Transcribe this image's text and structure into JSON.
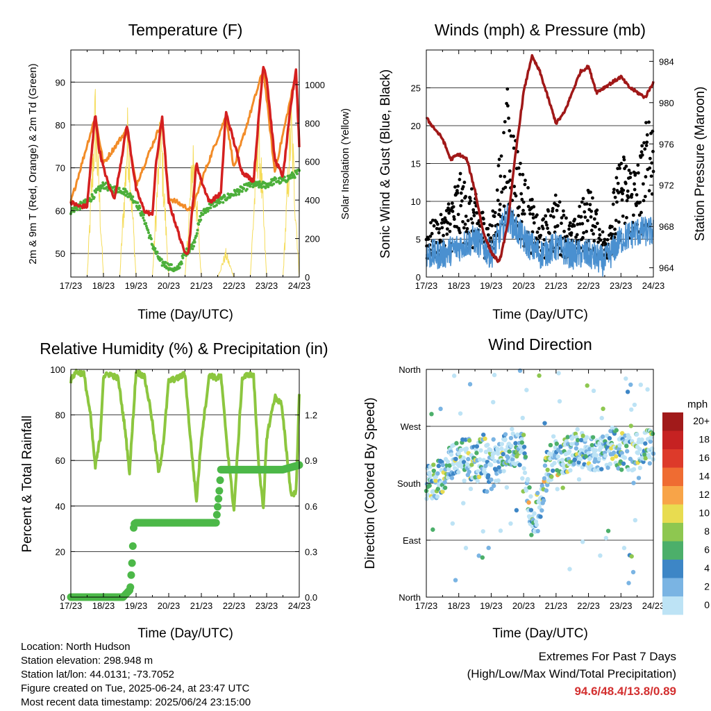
{
  "x_ticks": [
    "17/23",
    "18/23",
    "19/23",
    "20/23",
    "21/23",
    "22/23",
    "23/23",
    "24/23"
  ],
  "time_label": "Time (Day/UTC)",
  "temperature": {
    "title": "Temperature (F)",
    "ylabel_left": "2m & 9m T (Red, Orange) & 2m Td (Green)",
    "ylabel_right": "Solar Insolation (Yellow)",
    "left_ticks": [
      50,
      60,
      70,
      80,
      90
    ],
    "right_ticks": [
      0,
      200,
      400,
      600,
      800,
      1000
    ],
    "ylim_left": [
      44.5,
      97.5
    ],
    "ylim_right": [
      0,
      1180
    ]
  },
  "winds": {
    "title": "Winds (mph) & Pressure (mb)",
    "ylabel_left": "Sonic Wind & Gust (Blue, Black)",
    "ylabel_right": "Station Pressure (Maroon)",
    "left_ticks": [
      0,
      5,
      10,
      15,
      20,
      25
    ],
    "right_ticks": [
      964,
      968,
      972,
      976,
      980,
      984
    ],
    "ylim_left": [
      0,
      30
    ],
    "ylim_right": [
      963.1,
      985.1
    ]
  },
  "humidity": {
    "title": "Relative Humidity (%) & Precipitation (in)",
    "ylabel_left": "Percent & Total Rainfall",
    "left_ticks": [
      0,
      20,
      40,
      60,
      80,
      100
    ],
    "right_ticks": [
      "0.0",
      "0.3",
      "0.6",
      "0.9",
      "1.2"
    ],
    "ylim_left": [
      0,
      100
    ],
    "ylim_right": [
      0,
      1.5
    ]
  },
  "direction": {
    "title": "Wind Direction",
    "ylabel_left": "Direction (Colored By Speed)",
    "left_ticks": [
      "North",
      "East",
      "South",
      "West",
      "North"
    ],
    "legend_title": "mph",
    "legend_labels": [
      "20+",
      "18",
      "16",
      "14",
      "12",
      "10",
      "8",
      "6",
      "4",
      "2",
      "0"
    ],
    "legend_colors": [
      "#a11a1a",
      "#c62222",
      "#dd3a2a",
      "#ef6c32",
      "#f8a448",
      "#e8dc50",
      "#8ec750",
      "#4caf6a",
      "#3d86c6",
      "#7ab4e3",
      "#bde3f5"
    ]
  },
  "info": {
    "location": "Location: North Hudson",
    "elevation": "Station elevation: 298.948 m",
    "latlon": "Station lat/lon: 44.0131; -73.7052",
    "created": "Figure created on Tue, 2025-06-24, at 23:47 UTC",
    "recent": "Most recent data timestamp: 2025/06/24 23:15:00"
  },
  "extremes": {
    "heading": "Extremes For Past 7 Days",
    "subheading": "(High/Low/Max Wind/Total Precipitation)",
    "values": "94.6/48.4/13.8/0.89"
  },
  "colors": {
    "temp_2m": "#d42020",
    "temp_9m": "#f28c28",
    "dewpoint": "#4caf3a",
    "solar": "#f5dc5a",
    "wind": "#4a90d0",
    "gust": "#000000",
    "pressure": "#a01818",
    "rh": "#8cc63f",
    "precip": "#4cb848"
  },
  "chart_data": [
    {
      "type": "line",
      "title": "Temperature (F)",
      "xlabel": "Time (Day/UTC)",
      "ylabel": "2m & 9m T (Red, Orange) & 2m Td (Green)",
      "y2label": "Solar Insolation (Yellow)",
      "x_range_days": [
        0,
        7
      ],
      "ylim": [
        44.5,
        97.5
      ],
      "y2lim": [
        0,
        1180
      ],
      "series": [
        {
          "name": "2m T",
          "x": [
            0,
            0.25,
            0.5,
            0.6,
            0.75,
            0.85,
            1,
            1.2,
            1.35,
            1.55,
            1.72,
            1.85,
            2,
            2.25,
            2.5,
            2.6,
            2.8,
            2.9,
            3,
            3.25,
            3.45,
            3.6,
            3.72,
            3.85,
            4,
            4.25,
            4.6,
            4.75,
            5,
            5.25,
            5.6,
            5.75,
            5.9,
            6,
            6.25,
            6.5,
            6.75,
            6.9,
            7
          ],
          "values": [
            62,
            61,
            61,
            70,
            83,
            75,
            70,
            65,
            63,
            72,
            80,
            73,
            65,
            60,
            59,
            70,
            82,
            72,
            62,
            56,
            51,
            50,
            60,
            71,
            67,
            62,
            64,
            83,
            76,
            69,
            67,
            81,
            94,
            91,
            72,
            68,
            85,
            93,
            75
          ]
        },
        {
          "name": "9m T",
          "x": [
            0,
            0.75,
            1,
            1.72,
            2,
            2.8,
            3,
            3.72,
            4,
            4.75,
            5,
            5.9,
            6.25,
            6.9,
            7
          ],
          "values": [
            62,
            82,
            71,
            79,
            66,
            81,
            63,
            60,
            67,
            82,
            70,
            93,
            69,
            92,
            76
          ]
        },
        {
          "name": "2m Td",
          "x": [
            0,
            0.25,
            0.5,
            0.75,
            1,
            1.25,
            1.5,
            1.75,
            2,
            2.25,
            2.5,
            2.75,
            3,
            3.25,
            3.5,
            3.75,
            4,
            4.25,
            4.5,
            4.75,
            5,
            5.25,
            5.5,
            5.75,
            6,
            6.25,
            6.5,
            6.75,
            7
          ],
          "values": [
            60,
            61,
            62,
            64,
            66,
            65,
            65,
            64,
            62,
            58,
            52,
            48,
            47,
            46,
            50,
            52,
            59,
            61,
            62,
            63,
            64,
            65,
            66,
            66,
            66,
            67,
            67,
            68,
            69
          ]
        },
        {
          "name": "Solar",
          "x": [
            0.5,
            0.75,
            1.0,
            1.5,
            1.75,
            2.0,
            2.5,
            2.75,
            3.0,
            3.5,
            3.75,
            4.0,
            4.5,
            4.75,
            5.0,
            5.5,
            5.75,
            6.0,
            6.5,
            6.75,
            7.0
          ],
          "values": [
            0,
            1050,
            0,
            0,
            950,
            0,
            0,
            950,
            0,
            0,
            800,
            0,
            0,
            150,
            0,
            0,
            1000,
            0,
            0,
            1000,
            0
          ]
        }
      ]
    },
    {
      "type": "scatter",
      "title": "Winds (mph) & Pressure (mb)",
      "xlabel": "Time (Day/UTC)",
      "ylabel": "Sonic Wind & Gust (Blue, Black)",
      "y2label": "Station Pressure (Maroon)",
      "ylim": [
        0,
        30
      ],
      "y2lim": [
        963.1,
        985.1
      ],
      "series": [
        {
          "name": "Sonic Wind",
          "x": [
            0,
            0.5,
            1,
            1.5,
            2,
            2.5,
            3,
            3.5,
            4,
            4.5,
            5,
            5.5,
            6,
            6.5,
            7
          ],
          "values": [
            3,
            3,
            4,
            5,
            3,
            8,
            5,
            3,
            4,
            3,
            3,
            2,
            5,
            6,
            6
          ]
        },
        {
          "name": "Gust",
          "x": [
            0,
            0.5,
            1,
            1.5,
            2,
            2.5,
            3,
            3.5,
            4,
            4.5,
            5,
            5.5,
            6,
            6.5,
            7
          ],
          "values": [
            5,
            6,
            10,
            8,
            5,
            18,
            10,
            5,
            8,
            5,
            9,
            4,
            12,
            11,
            18
          ]
        },
        {
          "name": "Station Pressure",
          "x": [
            0,
            0.25,
            0.5,
            0.75,
            1,
            1.25,
            1.5,
            1.75,
            2,
            2.25,
            2.5,
            2.75,
            3,
            3.25,
            3.5,
            3.75,
            4,
            4.25,
            4.5,
            4.75,
            5,
            5.25,
            5.5,
            5.75,
            6,
            6.25,
            6.5,
            6.75,
            7
          ],
          "values": [
            978.5,
            977.5,
            976.5,
            974.5,
            975.0,
            974.5,
            971.5,
            967.5,
            965.5,
            964.5,
            968.0,
            975.0,
            981.0,
            984.5,
            983.0,
            980.5,
            978.0,
            979.0,
            981.0,
            983.0,
            983.5,
            981.0,
            981.5,
            982.0,
            982.5,
            981.5,
            981.0,
            980.5,
            982.0
          ]
        }
      ]
    },
    {
      "type": "line",
      "title": "Relative Humidity (%) & Precipitation (in)",
      "xlabel": "Time (Day/UTC)",
      "ylabel": "Percent & Total Rainfall",
      "ylim": [
        0,
        100
      ],
      "y2lim": [
        0,
        1.5
      ],
      "series": [
        {
          "name": "Relative Humidity",
          "x": [
            0,
            0.15,
            0.4,
            0.6,
            0.75,
            0.9,
            1,
            1.2,
            1.45,
            1.65,
            1.8,
            2,
            2.25,
            2.45,
            2.7,
            2.85,
            3,
            3.25,
            3.5,
            3.65,
            3.85,
            4,
            4.25,
            4.45,
            4.6,
            4.8,
            5,
            5.25,
            5.45,
            5.6,
            5.75,
            5.9,
            6,
            6.25,
            6.45,
            6.55,
            6.75,
            6.9,
            7
          ],
          "values": [
            95,
            99,
            98,
            80,
            57,
            70,
            97,
            98,
            96,
            75,
            55,
            99,
            97,
            82,
            54,
            70,
            95,
            96,
            98,
            72,
            42,
            70,
            98,
            96,
            97,
            65,
            38,
            96,
            98,
            97,
            60,
            38,
            70,
            88,
            85,
            72,
            45,
            46,
            88
          ]
        },
        {
          "name": "Total Precipitation",
          "x": [
            0,
            1.6,
            1.82,
            1.88,
            1.93,
            2.0,
            2.5,
            3.0,
            3.5,
            4.0,
            4.45,
            4.55,
            4.6,
            5.0,
            5.5,
            6.0,
            6.5,
            7.0
          ],
          "values": [
            0,
            0,
            0.05,
            0.24,
            0.48,
            0.49,
            0.49,
            0.49,
            0.49,
            0.49,
            0.49,
            0.7,
            0.84,
            0.84,
            0.84,
            0.84,
            0.84,
            0.87
          ]
        }
      ]
    },
    {
      "type": "scatter",
      "title": "Wind Direction",
      "xlabel": "Time (Day/UTC)",
      "ylabel": "Direction (Colored By Speed)",
      "y_categories": [
        "North",
        "East",
        "South",
        "West",
        "North"
      ],
      "ylim_degrees": [
        0,
        360
      ],
      "legend_title": "mph",
      "series": [
        {
          "name": "Direction",
          "x": [
            0,
            0.25,
            0.5,
            0.75,
            1,
            1.25,
            1.5,
            1.75,
            2,
            2.25,
            2.5,
            2.75,
            3,
            3.25,
            3.5,
            3.75,
            4,
            4.25,
            4.5,
            4.75,
            5,
            5.25,
            5.5,
            5.75,
            6,
            6.25,
            6.5,
            6.75,
            7
          ],
          "values": [
            180,
            180,
            195,
            210,
            220,
            225,
            205,
            230,
            200,
            215,
            240,
            235,
            230,
            120,
            150,
            210,
            220,
            225,
            230,
            240,
            220,
            230,
            230,
            240,
            230,
            230,
            230,
            240,
            230
          ]
        }
      ]
    }
  ]
}
